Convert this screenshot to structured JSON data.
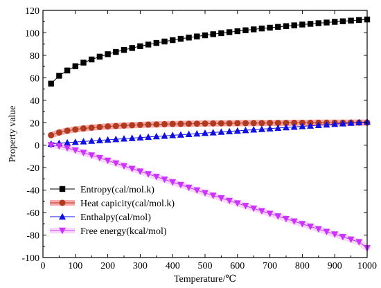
{
  "chart_data": {
    "type": "line",
    "title": "",
    "xlabel": "Temperature/℃",
    "ylabel": "Property value",
    "xlim": [
      0,
      1000
    ],
    "ylim": [
      -100,
      120
    ],
    "xticks": [
      0,
      100,
      200,
      300,
      400,
      500,
      600,
      700,
      800,
      900,
      1000
    ],
    "yticks": [
      -100,
      -80,
      -60,
      -40,
      -20,
      0,
      20,
      40,
      60,
      80,
      100,
      120
    ],
    "grid": false,
    "legend_position": "bottom-left",
    "x": [
      25,
      50,
      75,
      100,
      125,
      150,
      175,
      200,
      225,
      250,
      275,
      300,
      325,
      350,
      375,
      400,
      425,
      450,
      475,
      500,
      525,
      550,
      575,
      600,
      625,
      650,
      675,
      700,
      725,
      750,
      775,
      800,
      825,
      850,
      875,
      900,
      925,
      950,
      975,
      1000
    ],
    "series": [
      {
        "name": "Entropy(cal/mol.k)",
        "marker": "square",
        "color": "#000000",
        "values": [
          54.8,
          61.8,
          66.5,
          70.3,
          73.5,
          76.3,
          78.8,
          81.0,
          83.0,
          84.8,
          86.5,
          88.1,
          89.6,
          91.0,
          92.3,
          93.5,
          94.7,
          95.8,
          96.8,
          97.8,
          98.8,
          99.7,
          100.6,
          101.5,
          102.3,
          103.1,
          103.9,
          104.6,
          105.3,
          106.0,
          106.7,
          107.4,
          108.0,
          108.6,
          109.2,
          109.8,
          110.3,
          110.9,
          111.4,
          111.9
        ]
      },
      {
        "name": "Heat capicity(cal/mol.k)",
        "marker": "circle",
        "color": "#b03a1e",
        "halo": "#f06060",
        "values": [
          8.9,
          11.3,
          12.9,
          14.0,
          14.9,
          15.6,
          16.2,
          16.7,
          17.1,
          17.5,
          17.8,
          18.1,
          18.3,
          18.5,
          18.7,
          18.9,
          19.0,
          19.1,
          19.2,
          19.3,
          19.4,
          19.5,
          19.5,
          19.6,
          19.6,
          19.7,
          19.7,
          19.8,
          19.8,
          19.8,
          19.9,
          19.9,
          19.9,
          20.0,
          20.0,
          20.0,
          20.0,
          20.1,
          20.1,
          20.1
        ]
      },
      {
        "name": "Enthalpy(cal/mol)",
        "marker": "triangle-up",
        "color": "#1010e0",
        "values": [
          1.2,
          1.8,
          2.3,
          2.8,
          3.3,
          3.8,
          4.3,
          4.8,
          5.3,
          5.8,
          6.3,
          6.8,
          7.3,
          7.8,
          8.3,
          8.8,
          9.3,
          9.8,
          10.3,
          10.8,
          11.3,
          11.8,
          12.3,
          12.8,
          13.3,
          13.8,
          14.3,
          14.8,
          15.3,
          15.8,
          16.3,
          16.8,
          17.3,
          17.8,
          18.3,
          18.8,
          19.3,
          19.8,
          20.3,
          20.8
        ]
      },
      {
        "name": "Free energy(kcal/mol)",
        "marker": "triangle-down",
        "color": "#cc33ff",
        "halo": "#f2b8f2",
        "values": [
          0.2,
          -0.8,
          -2.5,
          -4.5,
          -6.7,
          -9.0,
          -11.3,
          -13.7,
          -16.1,
          -18.5,
          -20.9,
          -23.3,
          -25.7,
          -28.1,
          -30.5,
          -32.9,
          -35.3,
          -37.7,
          -40.1,
          -42.5,
          -44.8,
          -47.1,
          -49.4,
          -51.7,
          -54.0,
          -56.3,
          -58.6,
          -60.9,
          -63.2,
          -65.5,
          -67.8,
          -70.1,
          -72.4,
          -74.7,
          -77.0,
          -79.3,
          -81.6,
          -83.9,
          -86.2,
          -91.5
        ]
      }
    ]
  }
}
